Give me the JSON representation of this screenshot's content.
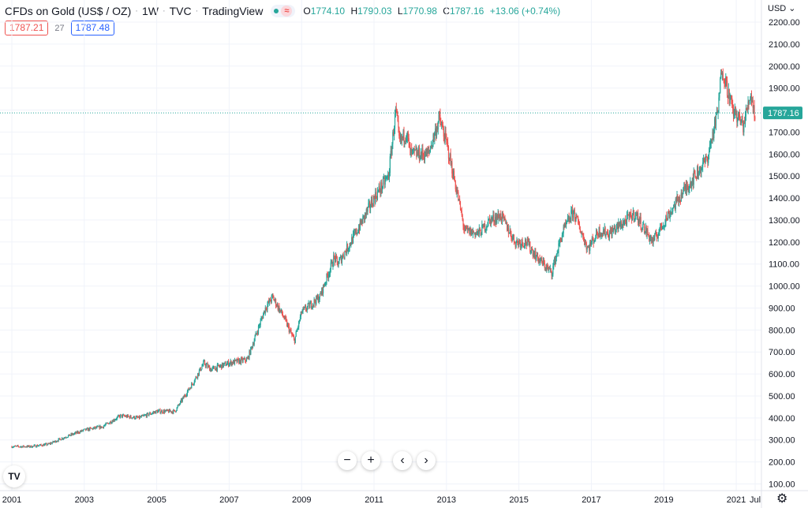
{
  "header": {
    "symbol_title": "CFDs on Gold (US$ / OZ)",
    "interval": "1W",
    "source": "TVC",
    "publisher": "TradingView",
    "market_status_icon": "market-open-dot",
    "wave_icon": "≈",
    "ohlc": {
      "o_label": "O",
      "o_value": "1774.10",
      "h_label": "H",
      "h_value": "1790.03",
      "l_label": "L",
      "l_value": "1770.98",
      "c_label": "C",
      "c_value": "1787.16",
      "change": "+13.06 (+0.74%)"
    }
  },
  "quote": {
    "sell_price": "1787.21",
    "spread": "27",
    "buy_price": "1787.48"
  },
  "price_scale": {
    "currency_label": "USD",
    "currency_icon": "chevron-down-icon",
    "last_price_label": "1787.16"
  },
  "controls": {
    "zoom_out": "−",
    "zoom_in": "+",
    "scroll_left": "‹",
    "scroll_right": "›",
    "logo": "TV",
    "settings_icon": "gear-icon"
  },
  "colors": {
    "up": "#26a69a",
    "down": "#ef5350",
    "grid": "#f0f3fa",
    "last_price_line": "#26a69a",
    "sell": "#ef5350",
    "buy": "#2962ff"
  },
  "chart_data": {
    "type": "line",
    "style": "candlestick",
    "title": "CFDs on Gold (US$ / OZ)",
    "interval": "1W",
    "xlabel": "",
    "ylabel": "",
    "x_ticks": [
      "2001",
      "2003",
      "2005",
      "2007",
      "2009",
      "2011",
      "2013",
      "2015",
      "2017",
      "2019",
      "2021",
      "Jul"
    ],
    "y_ticks": [
      "100.00",
      "200.00",
      "300.00",
      "400.00",
      "500.00",
      "600.00",
      "700.00",
      "800.00",
      "900.00",
      "1000.00",
      "1100.00",
      "1200.00",
      "1300.00",
      "1400.00",
      "1500.00",
      "1600.00",
      "1700.00",
      "1800.00",
      "1900.00",
      "2000.00",
      "2100.00",
      "2200.00"
    ],
    "ylim": [
      65,
      2235
    ],
    "xlim": [
      2000.97,
      2021.64
    ],
    "grid": true,
    "last_price": 1787.16,
    "x": [
      2001.0,
      2001.5,
      2002.0,
      2002.5,
      2003.0,
      2003.5,
      2004.0,
      2004.5,
      2005.0,
      2005.5,
      2006.0,
      2006.3,
      2006.5,
      2007.0,
      2007.5,
      2008.0,
      2008.2,
      2008.5,
      2008.8,
      2009.0,
      2009.5,
      2009.9,
      2010.0,
      2010.5,
      2011.0,
      2011.4,
      2011.6,
      2011.7,
      2011.9,
      2012.0,
      2012.5,
      2012.8,
      2013.0,
      2013.3,
      2013.5,
      2013.9,
      2014.2,
      2014.5,
      2014.9,
      2015.2,
      2015.5,
      2015.9,
      2016.2,
      2016.5,
      2016.9,
      2017.2,
      2017.5,
      2017.9,
      2018.2,
      2018.5,
      2018.7,
      2019.0,
      2019.5,
      2019.9,
      2020.2,
      2020.5,
      2020.6,
      2020.9,
      2021.2,
      2021.4,
      2021.5
    ],
    "close": [
      270,
      270,
      280,
      315,
      345,
      360,
      410,
      400,
      430,
      430,
      560,
      650,
      620,
      650,
      665,
      900,
      950,
      860,
      750,
      880,
      950,
      1130,
      1100,
      1240,
      1400,
      1500,
      1800,
      1650,
      1700,
      1600,
      1600,
      1760,
      1650,
      1420,
      1250,
      1240,
      1300,
      1320,
      1200,
      1200,
      1130,
      1060,
      1240,
      1340,
      1170,
      1250,
      1240,
      1290,
      1330,
      1250,
      1200,
      1290,
      1420,
      1510,
      1580,
      1800,
      2000,
      1800,
      1730,
      1880,
      1787.16
    ]
  }
}
